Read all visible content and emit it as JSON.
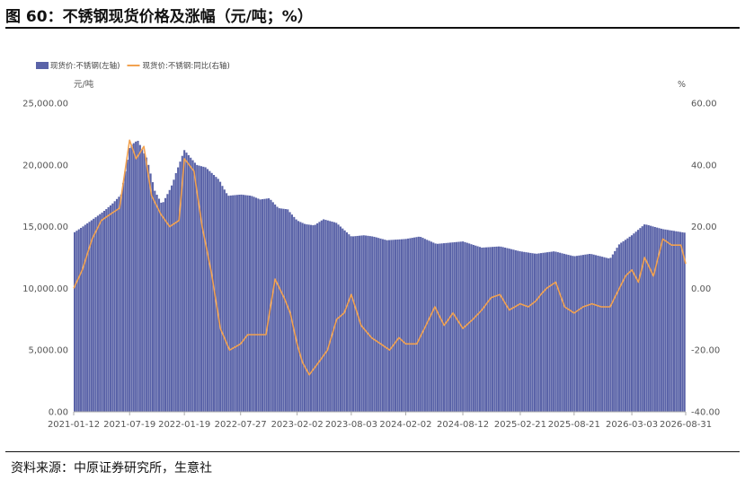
{
  "page": {
    "title": "图 60：不锈钢现货价格及涨幅（元/吨；%）",
    "source": "资料来源：中原证券研究所，生意社"
  },
  "colors": {
    "bars": "#5a63a8",
    "line": "#f2a250",
    "axis": "#aaaaaa"
  },
  "chart_data": {
    "type": "bar",
    "title": "",
    "legend_position": "top-left",
    "grid": false,
    "y_left": {
      "unit": "元/吨",
      "range": [
        0,
        25000
      ],
      "ticks": [
        "0.00",
        "5,000.00",
        "10,000.00",
        "15,000.00",
        "20,000.00",
        "25,000.00"
      ]
    },
    "y_right": {
      "unit": "%",
      "range": [
        -40,
        60
      ],
      "ticks": [
        "-40.00",
        "-20.00",
        "0.00",
        "20.00",
        "40.00",
        "60.00"
      ]
    },
    "x_ticks": [
      "2021-01-12",
      "2021-07-19",
      "2022-01-19",
      "2022-07-27",
      "2023-02-02",
      "2023-08-03",
      "2024-02-02",
      "2024-08-12",
      "2025-02-21",
      "2025-08-21",
      "2026-03-03",
      "2026-08-31"
    ],
    "series": [
      {
        "name": "现货价:不锈钢(左轴)",
        "type": "bar",
        "axis": "left",
        "x": [
          "2021-01-12",
          "2021-03-01",
          "2021-04-15",
          "2021-05-20",
          "2021-06-20",
          "2021-07-19",
          "2021-08-15",
          "2021-09-15",
          "2021-10-10",
          "2021-11-05",
          "2021-12-05",
          "2022-01-19",
          "2022-03-01",
          "2022-04-01",
          "2022-05-15",
          "2022-06-15",
          "2022-07-27",
          "2022-09-01",
          "2022-10-01",
          "2022-11-01",
          "2022-12-01",
          "2023-01-01",
          "2023-02-02",
          "2023-03-01",
          "2023-04-01",
          "2023-05-01",
          "2023-06-15",
          "2023-08-03",
          "2023-09-15",
          "2023-10-15",
          "2023-12-01",
          "2024-02-02",
          "2024-03-20",
          "2024-05-15",
          "2024-08-12",
          "2024-10-15",
          "2024-12-15",
          "2025-02-21",
          "2025-04-15",
          "2025-06-15",
          "2025-08-21",
          "2025-10-15",
          "2025-12-20",
          "2026-01-20",
          "2026-03-03",
          "2026-04-15",
          "2026-06-15",
          "2026-08-31"
        ],
        "values": [
          14500,
          15300,
          16100,
          16800,
          17600,
          21500,
          22000,
          20500,
          18000,
          16800,
          18200,
          21200,
          20000,
          19800,
          18800,
          17500,
          17600,
          17500,
          17200,
          17300,
          16500,
          16400,
          15500,
          15200,
          15100,
          15600,
          15300,
          14200,
          14300,
          14200,
          13900,
          14000,
          14200,
          13600,
          13800,
          13300,
          13400,
          13000,
          12800,
          13000,
          12600,
          12800,
          12400,
          13600,
          14300,
          15200,
          14800,
          14500
        ]
      },
      {
        "name": "现货价:不锈钢:同比(右轴)",
        "type": "line",
        "axis": "right",
        "x": [
          "2021-01-12",
          "2021-02-10",
          "2021-03-15",
          "2021-04-15",
          "2021-05-15",
          "2021-06-15",
          "2021-07-19",
          "2021-08-10",
          "2021-09-05",
          "2021-10-01",
          "2021-11-01",
          "2021-12-01",
          "2022-01-01",
          "2022-01-19",
          "2022-02-20",
          "2022-03-20",
          "2022-04-20",
          "2022-05-20",
          "2022-06-20",
          "2022-07-27",
          "2022-08-20",
          "2022-09-20",
          "2022-10-20",
          "2022-11-20",
          "2022-12-20",
          "2023-01-10",
          "2023-02-02",
          "2023-02-20",
          "2023-03-15",
          "2023-04-15",
          "2023-05-15",
          "2023-06-15",
          "2023-07-10",
          "2023-08-03",
          "2023-09-05",
          "2023-10-10",
          "2023-11-10",
          "2023-12-10",
          "2024-01-10",
          "2024-02-02",
          "2024-03-10",
          "2024-04-10",
          "2024-05-10",
          "2024-06-10",
          "2024-07-10",
          "2024-08-12",
          "2024-09-15",
          "2024-10-15",
          "2024-11-15",
          "2024-12-15",
          "2025-01-15",
          "2025-02-21",
          "2025-03-20",
          "2025-04-15",
          "2025-05-01",
          "2025-05-20",
          "2025-06-20",
          "2025-07-20",
          "2025-08-21",
          "2025-09-20",
          "2025-10-20",
          "2025-11-20",
          "2025-12-20",
          "2026-01-20",
          "2026-02-10",
          "2026-03-03",
          "2026-03-25",
          "2026-04-15",
          "2026-05-15",
          "2026-06-15",
          "2026-07-15",
          "2026-08-15",
          "2026-08-31"
        ],
        "values": [
          0,
          6,
          16,
          22,
          24,
          26,
          48,
          42,
          46,
          30,
          24,
          20,
          22,
          42,
          38,
          20,
          5,
          -13,
          -20,
          -18,
          -15,
          -15,
          -15,
          3,
          -3,
          -8,
          -18,
          -24,
          -28,
          -24,
          -20,
          -10,
          -8,
          -2,
          -12,
          -16,
          -18,
          -20,
          -16,
          -18,
          -18,
          -12,
          -6,
          -12,
          -8,
          -13,
          -10,
          -7,
          -3,
          -2,
          -7,
          -5,
          -6,
          -4,
          -2,
          0,
          2,
          -6,
          -8,
          -6,
          -5,
          -6,
          -6,
          0,
          4,
          6,
          2,
          10,
          4,
          16,
          14,
          14,
          8
        ]
      }
    ]
  }
}
